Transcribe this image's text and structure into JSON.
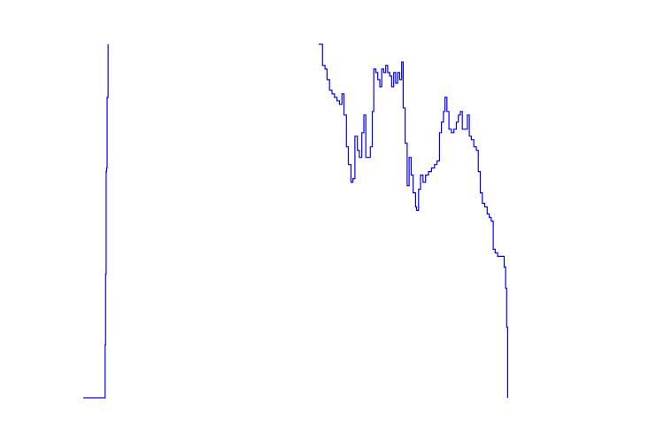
{
  "chart_data": {
    "type": "line",
    "title": "",
    "xlabel": "",
    "ylabel": "",
    "xlim": [
      0,
      100
    ],
    "ylim": [
      0,
      100
    ],
    "grid": false,
    "legend": "none",
    "axes_visible": false,
    "colors": {
      "line": "#0000ff",
      "background": "#ffffff"
    },
    "series": [
      {
        "segments": [
          [
            [
              0,
              0
            ],
            [
              4.3,
              0
            ],
            [
              4.4,
              15
            ],
            [
              4.5,
              35
            ],
            [
              4.6,
              64
            ],
            [
              4.7,
              65
            ],
            [
              4.8,
              85
            ],
            [
              5.0,
              100
            ]
          ],
          [
            [
              47.3,
              100
            ],
            [
              47.8,
              100
            ],
            [
              48.1,
              94
            ],
            [
              48.6,
              93
            ],
            [
              49.0,
              90
            ],
            [
              49.5,
              87
            ],
            [
              50.0,
              86
            ],
            [
              50.5,
              85
            ],
            [
              51.0,
              84
            ],
            [
              51.5,
              83
            ],
            [
              52.0,
              86
            ],
            [
              52.4,
              80
            ],
            [
              52.9,
              71
            ],
            [
              53.3,
              66
            ],
            [
              53.8,
              61
            ],
            [
              54.2,
              62
            ],
            [
              54.6,
              74
            ],
            [
              55.1,
              70
            ],
            [
              55.5,
              68
            ],
            [
              56.0,
              75
            ],
            [
              56.4,
              80
            ],
            [
              56.8,
              68
            ],
            [
              57.3,
              68
            ],
            [
              57.7,
              71
            ],
            [
              58.1,
              81
            ],
            [
              58.4,
              93
            ],
            [
              58.8,
              92
            ],
            [
              59.2,
              90
            ],
            [
              59.6,
              88
            ],
            [
              60.0,
              93
            ],
            [
              60.4,
              92
            ],
            [
              60.8,
              94
            ],
            [
              61.2,
              92
            ],
            [
              61.6,
              91
            ],
            [
              62.0,
              88
            ],
            [
              62.4,
              92
            ],
            [
              62.8,
              89
            ],
            [
              63.2,
              92
            ],
            [
              63.6,
              90
            ],
            [
              64.0,
              95
            ],
            [
              64.3,
              82
            ],
            [
              64.7,
              72
            ],
            [
              65.1,
              60
            ],
            [
              65.5,
              68
            ],
            [
              65.9,
              63
            ],
            [
              66.3,
              58
            ],
            [
              66.8,
              54
            ],
            [
              67.0,
              53
            ],
            [
              67.4,
              59
            ],
            [
              67.8,
              63
            ],
            [
              68.3,
              61
            ],
            [
              68.8,
              63
            ],
            [
              69.4,
              64
            ],
            [
              70.0,
              65
            ],
            [
              70.6,
              66
            ],
            [
              71.1,
              67
            ],
            [
              71.6,
              75
            ],
            [
              72.0,
              78
            ],
            [
              72.4,
              81
            ],
            [
              72.7,
              85
            ],
            [
              73.1,
              81
            ],
            [
              73.5,
              76
            ],
            [
              74.0,
              75
            ],
            [
              74.5,
              76
            ],
            [
              75.0,
              78
            ],
            [
              75.4,
              80
            ],
            [
              75.8,
              81
            ],
            [
              76.2,
              76
            ],
            [
              76.7,
              76
            ],
            [
              77.2,
              80
            ],
            [
              77.6,
              74
            ],
            [
              78.0,
              73
            ],
            [
              78.5,
              71
            ],
            [
              79.0,
              70
            ],
            [
              79.4,
              64
            ],
            [
              79.8,
              58
            ],
            [
              80.2,
              55
            ],
            [
              80.7,
              54
            ],
            [
              81.2,
              52
            ],
            [
              81.6,
              51
            ],
            [
              82.0,
              50
            ],
            [
              82.4,
              42
            ],
            [
              82.8,
              41
            ],
            [
              83.3,
              40
            ],
            [
              83.8,
              40
            ],
            [
              84.3,
              40
            ],
            [
              84.6,
              37
            ],
            [
              84.9,
              31
            ],
            [
              85.1,
              20
            ],
            [
              85.3,
              0
            ]
          ]
        ]
      }
    ]
  }
}
